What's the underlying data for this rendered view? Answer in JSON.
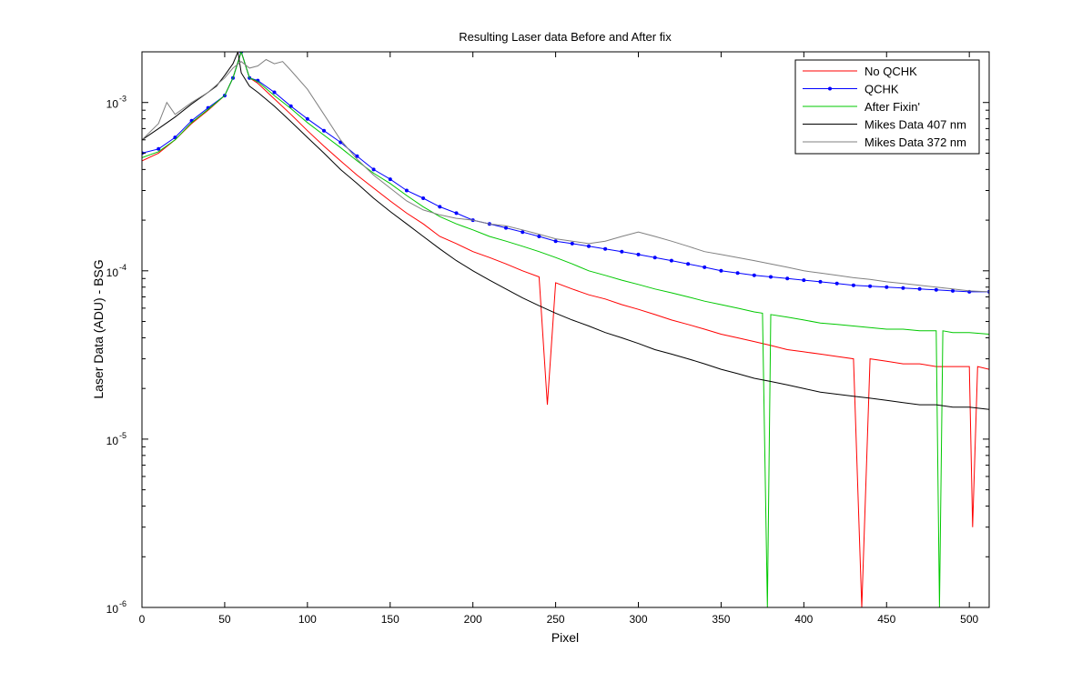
{
  "chart_data": {
    "type": "line",
    "title": "Resulting Laser data Before and After fix",
    "xlabel": "Pixel",
    "ylabel": "Laser Data (ADU) - BSG",
    "xlim": [
      0,
      512
    ],
    "ylim": [
      1e-06,
      0.002
    ],
    "yscale": "log",
    "grid": false,
    "legend_position": "top-right",
    "x_ticks": [
      0,
      50,
      100,
      150,
      200,
      250,
      300,
      350,
      400,
      450,
      500
    ],
    "y_ticks": [
      1e-06,
      1e-05,
      0.0001,
      0.001
    ],
    "y_tick_labels": [
      {
        "base": "10",
        "exp": "-6"
      },
      {
        "base": "10",
        "exp": "-5"
      },
      {
        "base": "10",
        "exp": "-4"
      },
      {
        "base": "10",
        "exp": "-3"
      }
    ],
    "series": [
      {
        "name": "No QCHK",
        "color": "#ff0000",
        "marker": "none",
        "x": [
          0,
          10,
          20,
          30,
          40,
          50,
          55,
          60,
          65,
          70,
          80,
          90,
          100,
          110,
          120,
          130,
          140,
          150,
          160,
          170,
          180,
          190,
          200,
          210,
          220,
          230,
          240,
          245,
          250,
          260,
          270,
          280,
          290,
          300,
          310,
          320,
          330,
          340,
          350,
          360,
          370,
          380,
          390,
          400,
          410,
          420,
          430,
          435,
          440,
          450,
          460,
          470,
          480,
          490,
          500,
          502,
          505,
          512
        ],
        "y": [
          0.00045,
          0.0005,
          0.0006,
          0.00075,
          0.0009,
          0.0011,
          0.0014,
          0.002,
          0.0014,
          0.0013,
          0.00105,
          0.00085,
          0.00068,
          0.00055,
          0.00045,
          0.00037,
          0.00031,
          0.00026,
          0.00022,
          0.00019,
          0.00016,
          0.000145,
          0.00013,
          0.00012,
          0.00011,
          0.0001,
          9.2e-05,
          1.6e-05,
          8.5e-05,
          7.8e-05,
          7.2e-05,
          6.8e-05,
          6.3e-05,
          5.9e-05,
          5.5e-05,
          5.1e-05,
          4.8e-05,
          4.5e-05,
          4.2e-05,
          4e-05,
          3.8e-05,
          3.6e-05,
          3.4e-05,
          3.3e-05,
          3.2e-05,
          3.1e-05,
          3e-05,
          1e-06,
          3e-05,
          2.9e-05,
          2.8e-05,
          2.8e-05,
          2.7e-05,
          2.7e-05,
          2.7e-05,
          3e-06,
          2.7e-05,
          2.6e-05
        ]
      },
      {
        "name": "QCHK",
        "color": "#0000ff",
        "marker": "dot",
        "x": [
          0,
          10,
          20,
          30,
          40,
          50,
          55,
          60,
          65,
          70,
          80,
          90,
          100,
          110,
          120,
          130,
          140,
          150,
          160,
          170,
          180,
          190,
          200,
          210,
          220,
          230,
          240,
          250,
          260,
          270,
          280,
          290,
          300,
          310,
          320,
          330,
          340,
          350,
          360,
          370,
          380,
          390,
          400,
          410,
          420,
          430,
          440,
          450,
          460,
          470,
          480,
          490,
          500,
          512
        ],
        "y": [
          0.0005,
          0.00053,
          0.00062,
          0.00078,
          0.00093,
          0.0011,
          0.0014,
          0.002,
          0.0014,
          0.00135,
          0.00115,
          0.00095,
          0.0008,
          0.00068,
          0.00058,
          0.00048,
          0.0004,
          0.00035,
          0.0003,
          0.00027,
          0.00024,
          0.00022,
          0.0002,
          0.00019,
          0.00018,
          0.00017,
          0.00016,
          0.00015,
          0.000145,
          0.00014,
          0.000135,
          0.00013,
          0.000125,
          0.00012,
          0.000115,
          0.00011,
          0.000105,
          0.0001,
          9.7e-05,
          9.4e-05,
          9.2e-05,
          9e-05,
          8.8e-05,
          8.6e-05,
          8.4e-05,
          8.2e-05,
          8.1e-05,
          8e-05,
          7.9e-05,
          7.8e-05,
          7.7e-05,
          7.6e-05,
          7.5e-05,
          7.5e-05
        ]
      },
      {
        "name": "After Fixin'",
        "color": "#00c800",
        "marker": "none",
        "x": [
          0,
          10,
          20,
          30,
          40,
          50,
          55,
          60,
          65,
          70,
          80,
          90,
          100,
          110,
          120,
          130,
          140,
          150,
          160,
          170,
          180,
          190,
          200,
          210,
          220,
          230,
          240,
          250,
          260,
          270,
          280,
          290,
          300,
          310,
          320,
          330,
          340,
          350,
          360,
          370,
          375,
          378,
          380,
          390,
          400,
          410,
          420,
          430,
          440,
          450,
          460,
          470,
          480,
          482,
          484,
          490,
          500,
          512
        ],
        "y": [
          0.00047,
          0.00051,
          0.0006,
          0.00076,
          0.00091,
          0.0011,
          0.0014,
          0.002,
          0.0014,
          0.00133,
          0.0011,
          0.00092,
          0.00076,
          0.00064,
          0.00054,
          0.00045,
          0.00038,
          0.00033,
          0.00028,
          0.00024,
          0.00021,
          0.00019,
          0.000175,
          0.00016,
          0.00015,
          0.00014,
          0.00013,
          0.00012,
          0.00011,
          0.0001,
          9.4e-05,
          8.8e-05,
          8.3e-05,
          7.8e-05,
          7.4e-05,
          7e-05,
          6.6e-05,
          6.3e-05,
          6e-05,
          5.7e-05,
          5.6e-05,
          1e-06,
          5.5e-05,
          5.3e-05,
          5.1e-05,
          4.9e-05,
          4.8e-05,
          4.7e-05,
          4.6e-05,
          4.5e-05,
          4.5e-05,
          4.4e-05,
          4.4e-05,
          1e-06,
          4.4e-05,
          4.3e-05,
          4.3e-05,
          4.2e-05
        ]
      },
      {
        "name": "Mikes Data 407 nm",
        "color": "#000000",
        "marker": "none",
        "x": [
          0,
          10,
          20,
          30,
          40,
          45,
          50,
          55,
          58,
          60,
          65,
          70,
          80,
          90,
          100,
          110,
          120,
          130,
          140,
          150,
          160,
          170,
          180,
          190,
          200,
          210,
          220,
          230,
          240,
          250,
          260,
          270,
          280,
          290,
          300,
          310,
          320,
          330,
          340,
          350,
          360,
          370,
          380,
          390,
          400,
          410,
          420,
          430,
          440,
          450,
          460,
          470,
          480,
          490,
          500,
          512
        ],
        "y": [
          0.0006,
          0.0007,
          0.00082,
          0.00098,
          0.00115,
          0.00125,
          0.00145,
          0.0017,
          0.002,
          0.0015,
          0.00125,
          0.00115,
          0.00095,
          0.00077,
          0.00062,
          0.0005,
          0.0004,
          0.00033,
          0.00027,
          0.000225,
          0.00019,
          0.00016,
          0.000135,
          0.000115,
          0.0001,
          8.8e-05,
          7.8e-05,
          6.9e-05,
          6.2e-05,
          5.6e-05,
          5.1e-05,
          4.7e-05,
          4.3e-05,
          4e-05,
          3.7e-05,
          3.4e-05,
          3.2e-05,
          3e-05,
          2.8e-05,
          2.6e-05,
          2.45e-05,
          2.3e-05,
          2.2e-05,
          2.1e-05,
          2e-05,
          1.9e-05,
          1.85e-05,
          1.8e-05,
          1.75e-05,
          1.7e-05,
          1.65e-05,
          1.6e-05,
          1.6e-05,
          1.55e-05,
          1.55e-05,
          1.5e-05
        ]
      },
      {
        "name": "Mikes Data 372 nm",
        "color": "#808080",
        "marker": "none",
        "x": [
          0,
          10,
          15,
          20,
          30,
          40,
          50,
          55,
          60,
          65,
          70,
          75,
          80,
          85,
          90,
          100,
          110,
          120,
          130,
          140,
          150,
          160,
          170,
          180,
          190,
          200,
          210,
          220,
          230,
          240,
          250,
          260,
          270,
          280,
          290,
          300,
          310,
          320,
          330,
          340,
          350,
          360,
          370,
          380,
          390,
          400,
          410,
          420,
          430,
          440,
          450,
          460,
          470,
          480,
          490,
          500,
          512
        ],
        "y": [
          0.0006,
          0.00075,
          0.001,
          0.00085,
          0.001,
          0.00115,
          0.0014,
          0.0016,
          0.00175,
          0.0016,
          0.00165,
          0.0018,
          0.0017,
          0.00175,
          0.00155,
          0.0012,
          0.00085,
          0.0006,
          0.00046,
          0.00037,
          0.00031,
          0.00026,
          0.00023,
          0.000215,
          0.000205,
          0.0002,
          0.00019,
          0.000185,
          0.000175,
          0.000165,
          0.000155,
          0.00015,
          0.000145,
          0.00015,
          0.00016,
          0.00017,
          0.00016,
          0.00015,
          0.00014,
          0.00013,
          0.000125,
          0.00012,
          0.000115,
          0.00011,
          0.000105,
          0.0001,
          9.7e-05,
          9.4e-05,
          9.1e-05,
          8.9e-05,
          8.6e-05,
          8.4e-05,
          8.2e-05,
          8e-05,
          7.8e-05,
          7.6e-05,
          7.5e-05
        ]
      }
    ]
  }
}
